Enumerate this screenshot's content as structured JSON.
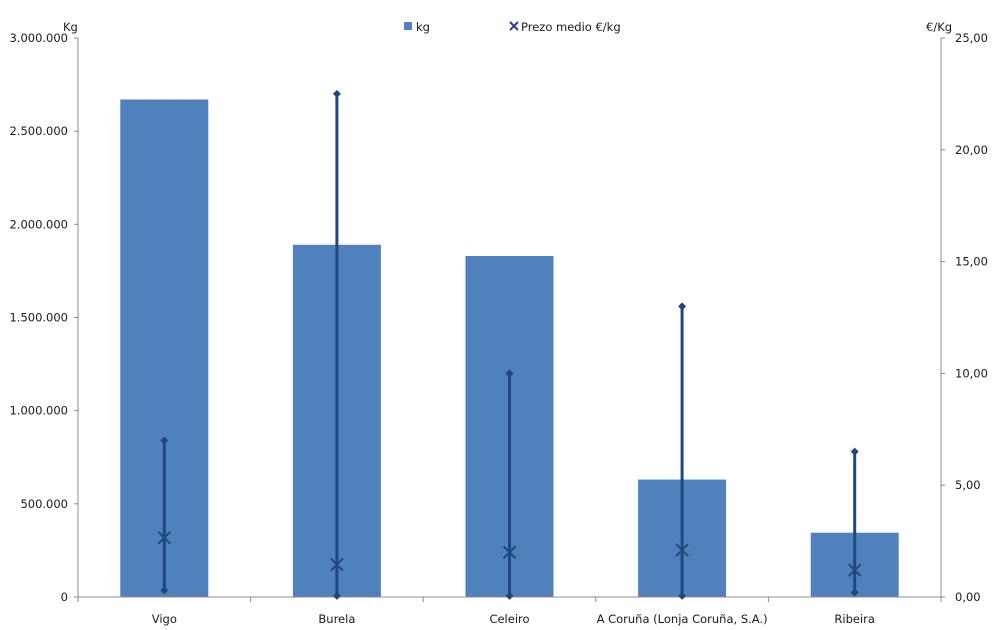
{
  "chart_data": {
    "type": "bar",
    "categories": [
      "Vigo",
      "Burela",
      "Celeiro",
      "A Coruña (Lonja Coruña, S.A.)",
      "Ribeira"
    ],
    "y_left": {
      "label": "Kg",
      "range": [
        0,
        3000000
      ],
      "ticks": [
        0,
        500000,
        1000000,
        1500000,
        2000000,
        2500000,
        3000000
      ],
      "tick_labels": [
        "0",
        "500.000",
        "1.000.000",
        "1.500.000",
        "2.000.000",
        "2.500.000",
        "3.000.000"
      ]
    },
    "y_right": {
      "label": "€/Kg",
      "range": [
        0,
        25
      ],
      "ticks": [
        0,
        5,
        10,
        15,
        20,
        25
      ],
      "tick_labels": [
        "0,00",
        "5,00",
        "10,00",
        "15,00",
        "20,00",
        "25,00"
      ]
    },
    "series": [
      {
        "name": "kg",
        "kind": "bar",
        "axis": "left",
        "color": "#4f81bd",
        "values": [
          2670000,
          1890000,
          1830000,
          630000,
          345000
        ]
      },
      {
        "name": "Prezo medio €/kg",
        "kind": "marker",
        "axis": "right",
        "color": "#1f497d",
        "values": [
          2.65,
          1.45,
          2.0,
          2.1,
          1.2
        ],
        "min": [
          0.3,
          0.05,
          0.05,
          0.05,
          0.2
        ],
        "max": [
          7.0,
          22.5,
          10.0,
          13.0,
          6.5
        ]
      }
    ],
    "legend": {
      "position": "top-center",
      "entries": [
        "kg",
        "Prezo medio €/kg"
      ]
    },
    "grid": false
  }
}
